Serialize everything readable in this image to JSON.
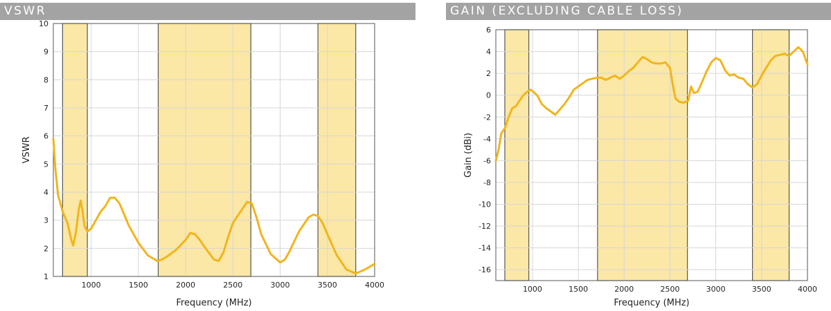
{
  "headers": {
    "vswr": "VSWR",
    "gain": "GAIN (EXCLUDING CABLE LOSS)"
  },
  "colors": {
    "band_fill": "#fbe7a6",
    "band_stroke": "#555555",
    "line": "#f1b51c",
    "grid": "#d6d6d6",
    "header_bg": "#a3a3a3"
  },
  "chart_data": [
    {
      "type": "line",
      "title": "VSWR",
      "xlabel": "Frequency (MHz)",
      "ylabel": "VSWR",
      "xlim": [
        600,
        4000
      ],
      "ylim": [
        1,
        10
      ],
      "x_ticks": [
        1000,
        1500,
        2000,
        2500,
        3000,
        3500,
        4000
      ],
      "y_ticks": [
        1,
        2,
        3,
        4,
        5,
        6,
        7,
        8,
        9,
        10
      ],
      "grid": true,
      "shaded_bands": [
        [
          698,
          960
        ],
        [
          1710,
          2690
        ],
        [
          3400,
          3800
        ]
      ],
      "series": [
        {
          "x": [
            600,
            620,
            650,
            700,
            750,
            790,
            810,
            840,
            870,
            890,
            910,
            930,
            960,
            1000,
            1050,
            1100,
            1150,
            1200,
            1250,
            1300,
            1350,
            1400,
            1500,
            1600,
            1700,
            1750,
            1800,
            1900,
            2000,
            2050,
            2100,
            2150,
            2200,
            2300,
            2350,
            2400,
            2450,
            2500,
            2600,
            2650,
            2700,
            2750,
            2800,
            2900,
            3000,
            3050,
            3100,
            3200,
            3300,
            3350,
            3400,
            3450,
            3500,
            3600,
            3700,
            3800,
            3900,
            4000
          ],
          "values": [
            5.9,
            4.9,
            3.9,
            3.3,
            2.9,
            2.3,
            2.1,
            2.6,
            3.4,
            3.7,
            3.3,
            2.8,
            2.6,
            2.7,
            3.0,
            3.3,
            3.5,
            3.8,
            3.8,
            3.6,
            3.2,
            2.8,
            2.2,
            1.75,
            1.55,
            1.6,
            1.7,
            1.95,
            2.3,
            2.55,
            2.5,
            2.3,
            2.05,
            1.6,
            1.55,
            1.85,
            2.4,
            2.9,
            3.4,
            3.65,
            3.6,
            3.1,
            2.5,
            1.8,
            1.5,
            1.6,
            1.9,
            2.6,
            3.1,
            3.2,
            3.15,
            2.9,
            2.5,
            1.75,
            1.25,
            1.1,
            1.25,
            1.45
          ]
        }
      ]
    },
    {
      "type": "line",
      "title": "GAIN (EXCLUDING CABLE LOSS)",
      "xlabel": "Frequency (MHz)",
      "ylabel": "Gain (dBi)",
      "xlim": [
        600,
        4000
      ],
      "ylim": [
        -17,
        6
      ],
      "x_ticks": [
        1000,
        1500,
        2000,
        2500,
        3000,
        3500,
        4000
      ],
      "y_ticks": [
        6,
        4,
        2,
        0,
        -2,
        -4,
        -6,
        -8,
        -10,
        -12,
        -14,
        -16
      ],
      "grid": true,
      "shaded_bands": [
        [
          698,
          960
        ],
        [
          1710,
          2690
        ],
        [
          3400,
          3800
        ]
      ],
      "series": [
        {
          "x": [
            600,
            630,
            660,
            700,
            740,
            780,
            820,
            860,
            900,
            940,
            980,
            1010,
            1050,
            1100,
            1150,
            1200,
            1250,
            1300,
            1350,
            1400,
            1450,
            1500,
            1550,
            1600,
            1650,
            1700,
            1750,
            1800,
            1850,
            1900,
            1950,
            2000,
            2050,
            2100,
            2150,
            2200,
            2250,
            2300,
            2350,
            2400,
            2450,
            2500,
            2530,
            2560,
            2600,
            2650,
            2700,
            2730,
            2760,
            2800,
            2850,
            2900,
            2950,
            3000,
            3050,
            3100,
            3150,
            3200,
            3250,
            3300,
            3350,
            3400,
            3450,
            3500,
            3550,
            3600,
            3650,
            3700,
            3750,
            3800,
            3850,
            3900,
            3950,
            4000
          ],
          "values": [
            -6.0,
            -5.0,
            -3.5,
            -3.0,
            -2.0,
            -1.2,
            -1.0,
            -0.5,
            0.0,
            0.3,
            0.5,
            0.3,
            0.0,
            -0.8,
            -1.2,
            -1.5,
            -1.8,
            -1.3,
            -0.8,
            -0.2,
            0.5,
            0.8,
            1.1,
            1.4,
            1.5,
            1.6,
            1.6,
            1.4,
            1.6,
            1.8,
            1.5,
            1.8,
            2.2,
            2.5,
            3.0,
            3.5,
            3.3,
            3.0,
            2.9,
            2.9,
            3.0,
            2.5,
            1.0,
            -0.3,
            -0.6,
            -0.7,
            -0.5,
            0.8,
            0.2,
            0.3,
            1.2,
            2.2,
            3.0,
            3.4,
            3.2,
            2.3,
            1.8,
            1.9,
            1.6,
            1.5,
            1.0,
            0.7,
            1.0,
            1.8,
            2.5,
            3.2,
            3.6,
            3.7,
            3.8,
            3.6,
            4.0,
            4.4,
            4.0,
            2.8
          ]
        }
      ]
    }
  ]
}
